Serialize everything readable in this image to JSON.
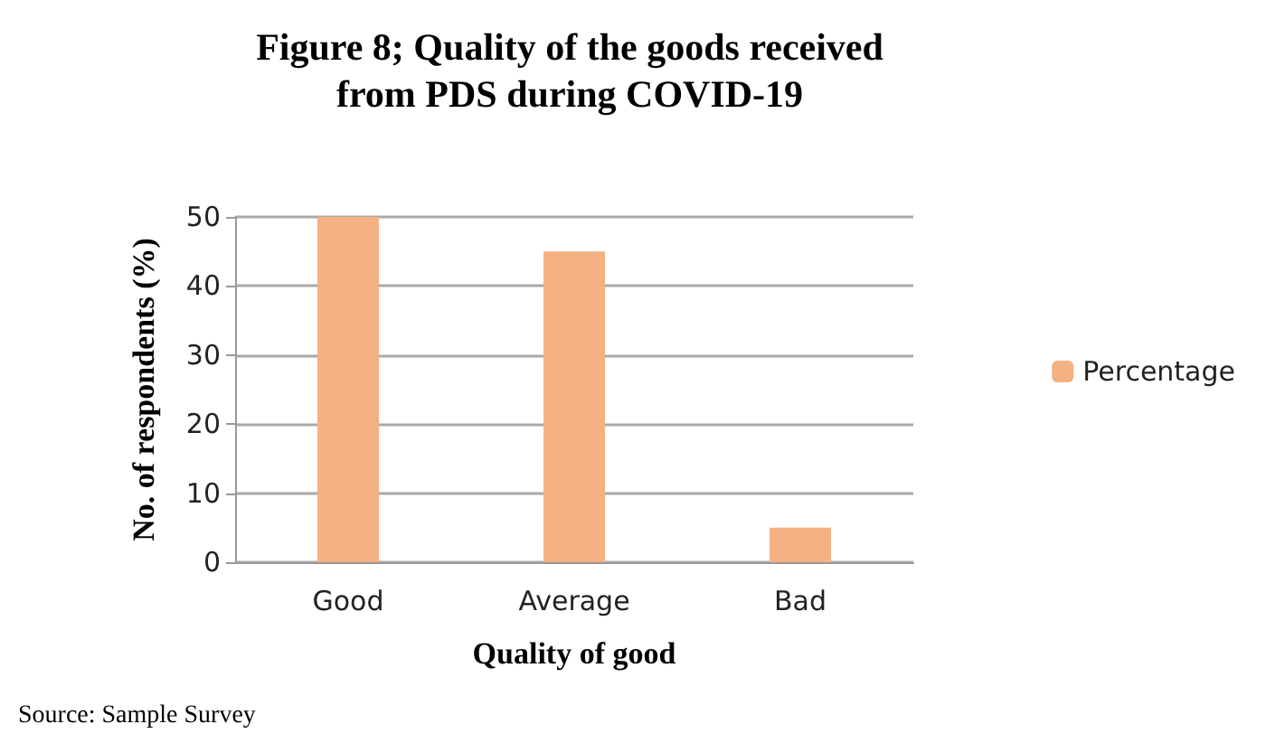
{
  "chart_data": {
    "type": "bar",
    "title": "Figure 8; Quality of the goods received\nfrom PDS during COVID-19",
    "xlabel": "Quality of good",
    "ylabel": "No. of respondents (%)",
    "categories": [
      "Good",
      "Average",
      "Bad"
    ],
    "series": [
      {
        "name": "Percentage",
        "color": "#f4b183",
        "values": [
          50,
          45,
          5
        ]
      }
    ],
    "ylim": [
      0,
      50
    ],
    "yticks": [
      0,
      10,
      20,
      30,
      40,
      50
    ],
    "grid": "y",
    "legend": "right",
    "annotations": [
      "Source: Sample Survey"
    ]
  }
}
